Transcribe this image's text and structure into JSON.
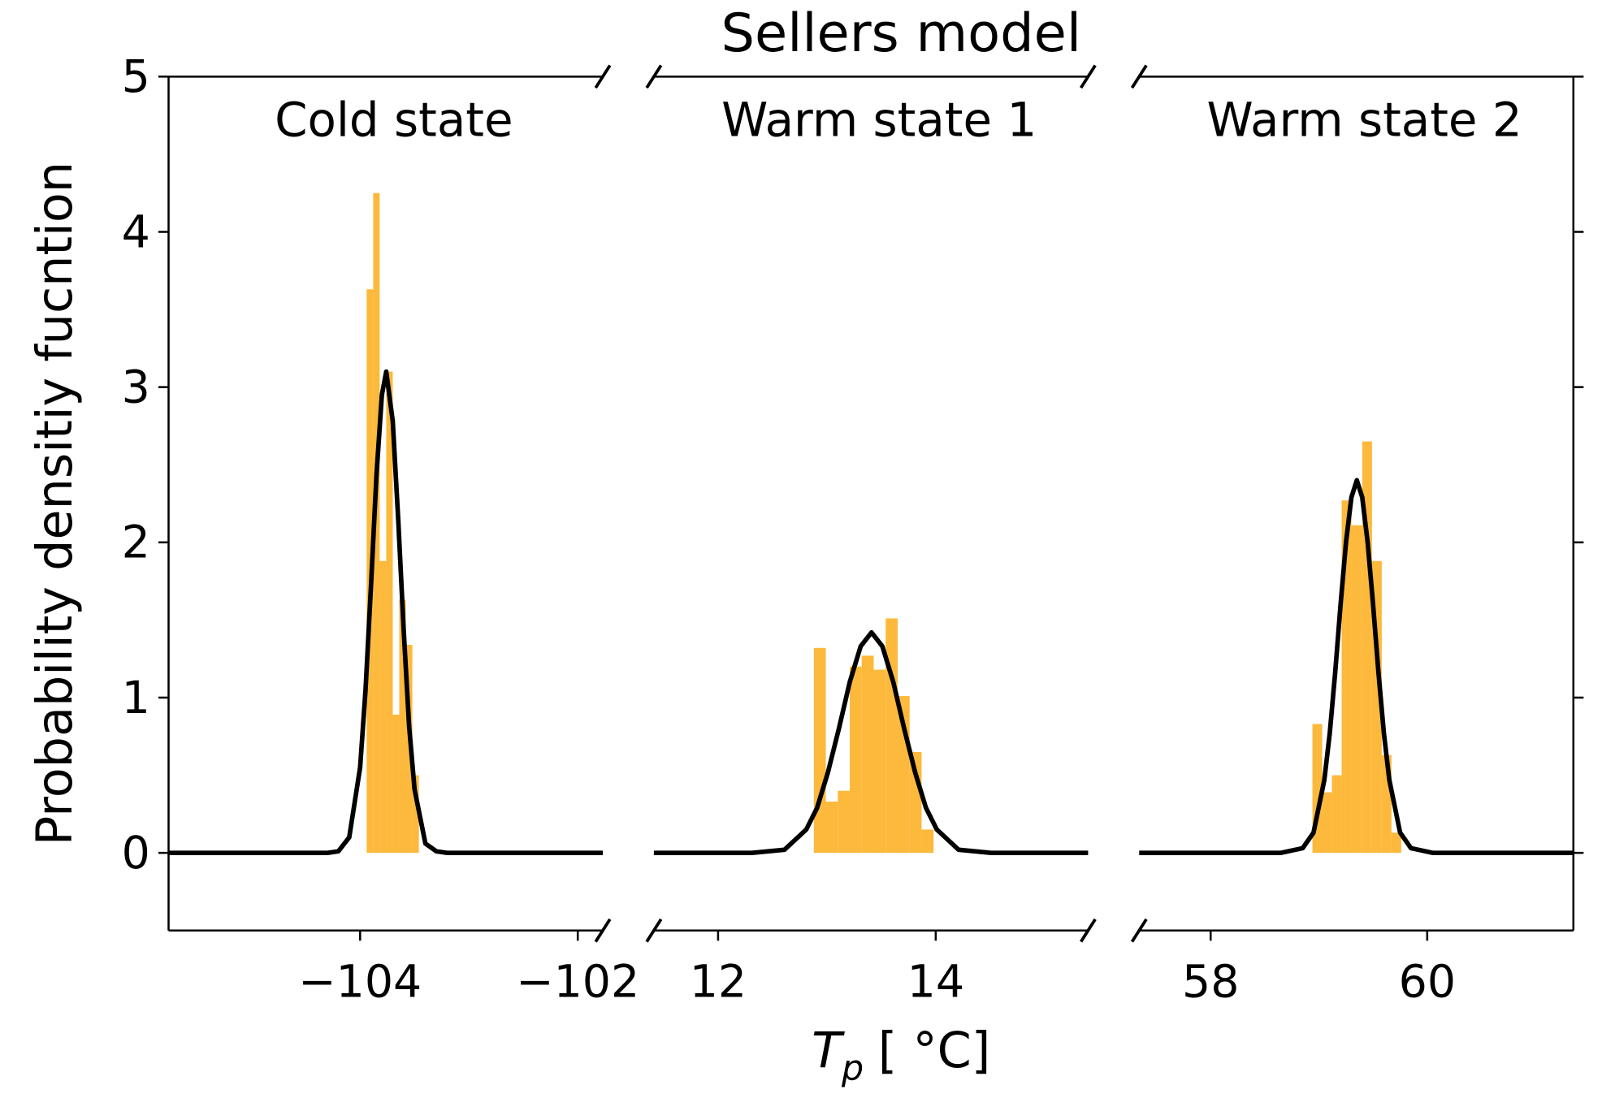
{
  "chart_data": {
    "type": "broken-axis",
    "title": "Sellers model",
    "ylabel": "Probability densitiy fucntion",
    "xlabel": {
      "variable": "T",
      "subscript": "p",
      "unit": "[ °C]"
    },
    "ylim": [
      -0.5,
      5
    ],
    "yticks": [
      0,
      1,
      2,
      3,
      4,
      5
    ],
    "panels": [
      {
        "annotation": "Cold state",
        "xlim": [
          -105.76,
          -101.77
        ],
        "xticks": [
          {
            "value": -104,
            "label": "−104"
          },
          {
            "value": -102,
            "label": "−102"
          }
        ],
        "series": [
          {
            "type": "histogram",
            "color": "#fdb93c",
            "bins": [
              -103.94,
              -103.88,
              -103.82,
              -103.76,
              -103.7,
              -103.64,
              -103.58,
              -103.52,
              -103.46
            ],
            "values": [
              3.63,
              4.25,
              1.88,
              3.1,
              0.89,
              1.63,
              1.34,
              0.5
            ]
          },
          {
            "type": "line",
            "color": "#000000",
            "x": [
              -105.76,
              -104.3,
              -104.2,
              -104.1,
              -104.0,
              -103.95,
              -103.9,
              -103.85,
              -103.8,
              -103.76,
              -103.7,
              -103.65,
              -103.6,
              -103.55,
              -103.5,
              -103.4,
              -103.3,
              -103.2,
              -101.77
            ],
            "values": [
              0,
              0,
              0.01,
              0.1,
              0.55,
              1.05,
              1.72,
              2.43,
              2.95,
              3.1,
              2.78,
              2.15,
              1.44,
              0.82,
              0.41,
              0.06,
              0.01,
              0,
              0
            ]
          }
        ]
      },
      {
        "annotation": "Warm state 1",
        "xlim": [
          11.41,
          15.4
        ],
        "xticks": [
          12,
          14
        ],
        "series": [
          {
            "type": "histogram",
            "color": "#fdb93c",
            "bins": [
              12.88,
              12.99,
              13.1,
              13.21,
              13.32,
              13.43,
              13.54,
              13.65,
              13.76,
              13.87,
              13.98
            ],
            "values": [
              1.32,
              0.33,
              0.4,
              1.2,
              1.27,
              1.18,
              1.51,
              1.01,
              0.65,
              0.15
            ]
          },
          {
            "type": "line",
            "color": "#000000",
            "x": [
              11.41,
              12.31,
              12.61,
              12.81,
              12.91,
              13.01,
              13.11,
              13.21,
              13.31,
              13.41,
              13.51,
              13.61,
              13.71,
              13.81,
              13.91,
              14.01,
              14.21,
              14.51,
              15.4
            ],
            "values": [
              0,
              0,
              0.02,
              0.15,
              0.29,
              0.52,
              0.8,
              1.1,
              1.33,
              1.42,
              1.33,
              1.1,
              0.8,
              0.52,
              0.29,
              0.15,
              0.02,
              0,
              0
            ]
          }
        ]
      },
      {
        "annotation": "Warm state 2",
        "xlim": [
          57.34,
          61.35
        ],
        "xticks": [
          58,
          60
        ],
        "series": [
          {
            "type": "histogram",
            "color": "#fdb93c",
            "bins": [
              58.94,
              59.03,
              59.12,
              59.21,
              59.3,
              59.4,
              59.49,
              59.58,
              59.67,
              59.76
            ],
            "values": [
              0.83,
              0.39,
              0.5,
              2.27,
              2.11,
              2.65,
              1.88,
              0.63,
              0.13
            ]
          },
          {
            "type": "line",
            "color": "#000000",
            "x": [
              57.34,
              58.65,
              58.85,
              58.95,
              59.05,
              59.1,
              59.15,
              59.2,
              59.25,
              59.3,
              59.35,
              59.4,
              59.45,
              59.5,
              59.55,
              59.6,
              59.65,
              59.75,
              59.85,
              60.05,
              61.35
            ],
            "values": [
              0,
              0,
              0.03,
              0.13,
              0.47,
              0.77,
              1.16,
              1.6,
              2.0,
              2.29,
              2.4,
              2.29,
              2.0,
              1.6,
              1.16,
              0.77,
              0.47,
              0.13,
              0.03,
              0,
              0
            ]
          }
        ]
      }
    ]
  }
}
